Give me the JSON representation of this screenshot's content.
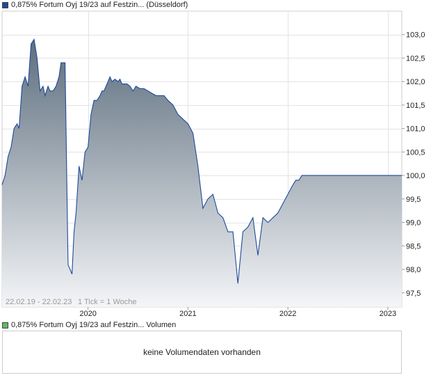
{
  "legend_top": {
    "label": "0,875% Fortum Oyj 19/23 auf Festzin... (Düsseldorf)",
    "color": "#1d4a9a"
  },
  "legend_volume": {
    "label": "0,875% Fortum Oyj 19/23 auf Festzin... Volumen",
    "color": "#5dbb5d"
  },
  "volume_message": "keine Volumendaten vorhanden",
  "chart_info": {
    "range_text": "22.02.19 - 22.02.23",
    "tick_text": "1 Tick = 1 Woche"
  },
  "chart_data": {
    "type": "area",
    "x_tick_labels": [
      "2020",
      "2021",
      "2022",
      "2023"
    ],
    "x_tick_dates": [
      2020.0,
      2021.0,
      2022.0,
      2023.0
    ],
    "y_tick_labels": [
      "97,5",
      "98,0",
      "98,5",
      "99,0",
      "99,5",
      "100,0",
      "100,5",
      "101,0",
      "101,5",
      "102,0",
      "102,5",
      "103,0"
    ],
    "y_tick_values": [
      97.5,
      98.0,
      98.5,
      99.0,
      99.5,
      100.0,
      100.5,
      101.0,
      101.5,
      102.0,
      102.5,
      103.0
    ],
    "xlim": [
      2019.14,
      2023.14
    ],
    "ylim": [
      97.2,
      103.5
    ],
    "grid": true,
    "line_color": "#1d4a9a",
    "fill_top_color": "#5d6e7e",
    "fill_bottom_color": "#f4f5f7",
    "series": [
      {
        "x": [
          2019.14,
          2019.17,
          2019.2,
          2019.23,
          2019.26,
          2019.29,
          2019.31,
          2019.34,
          2019.37,
          2019.4,
          2019.43,
          2019.46,
          2019.49,
          2019.52,
          2019.55,
          2019.57,
          2019.6,
          2019.62,
          2019.65,
          2019.68,
          2019.71,
          2019.73,
          2019.77,
          2019.8,
          2019.84,
          2019.86,
          2019.88,
          2019.91,
          2019.94,
          2019.97,
          2020.0,
          2020.03,
          2020.06,
          2020.09,
          2020.12,
          2020.14,
          2020.16,
          2020.18,
          2020.2,
          2020.22,
          2020.24,
          2020.27,
          2020.3,
          2020.32,
          2020.34,
          2020.37,
          2020.39,
          2020.42,
          2020.45,
          2020.48,
          2020.52,
          2020.56,
          2020.6,
          2020.64,
          2020.68,
          2020.72,
          2020.76,
          2020.8,
          2020.85,
          2020.9,
          2020.95,
          2021.0,
          2021.05,
          2021.1,
          2021.15,
          2021.2,
          2021.25,
          2021.3,
          2021.35,
          2021.4,
          2021.45,
          2021.5,
          2021.55,
          2021.6,
          2021.65,
          2021.7,
          2021.75,
          2021.8,
          2021.85,
          2021.9,
          2021.95,
          2022.0,
          2022.05,
          2022.08,
          2022.11,
          2022.14,
          2022.16,
          2022.19,
          2022.22,
          2022.25,
          2022.28,
          2022.31,
          2022.34,
          2022.37,
          2022.4,
          2022.43,
          2022.46,
          2022.49,
          2022.52,
          2022.55,
          2022.57,
          2022.6,
          2022.62,
          2022.65,
          2022.68,
          2022.71,
          2022.74,
          2022.77,
          2022.8,
          2022.84,
          2022.88,
          2022.92,
          2022.96,
          2023.0,
          2023.04,
          2023.08,
          2023.11,
          2023.14
        ],
        "y": [
          99.8,
          100.0,
          100.4,
          100.6,
          101.0,
          101.1,
          101.0,
          101.9,
          102.1,
          101.9,
          102.8,
          102.9,
          102.5,
          101.8,
          101.9,
          101.7,
          101.9,
          101.8,
          101.8,
          101.9,
          102.1,
          102.4,
          102.4,
          98.1,
          97.9,
          98.8,
          99.2,
          100.2,
          99.9,
          100.5,
          100.6,
          101.3,
          101.6,
          101.6,
          101.7,
          101.8,
          101.8,
          101.9,
          102.0,
          102.1,
          102.0,
          102.05,
          102.0,
          102.05,
          101.95,
          101.95,
          101.95,
          101.9,
          101.8,
          101.9,
          101.85,
          101.85,
          101.8,
          101.75,
          101.7,
          101.7,
          101.7,
          101.6,
          101.5,
          101.3,
          101.2,
          101.1,
          100.9,
          100.2,
          99.3,
          99.5,
          99.6,
          99.2,
          99.1,
          98.8,
          98.8,
          97.7,
          98.8,
          98.9,
          99.1,
          98.3,
          99.1,
          99.0,
          99.1,
          99.2,
          99.4,
          99.6,
          99.8,
          99.9,
          99.9,
          100.0,
          100.0,
          100.0,
          100.0,
          100.0,
          100.0,
          100.0,
          100.0,
          100.0,
          100.0,
          100.0,
          100.0,
          100.0,
          100.0,
          100.0,
          100.0,
          100.0,
          100.0,
          100.0,
          100.0,
          100.0,
          100.0,
          100.0,
          100.0,
          100.0,
          100.0,
          100.0,
          100.0,
          100.0,
          100.0,
          100.0,
          100.0,
          100.0
        ]
      }
    ]
  }
}
